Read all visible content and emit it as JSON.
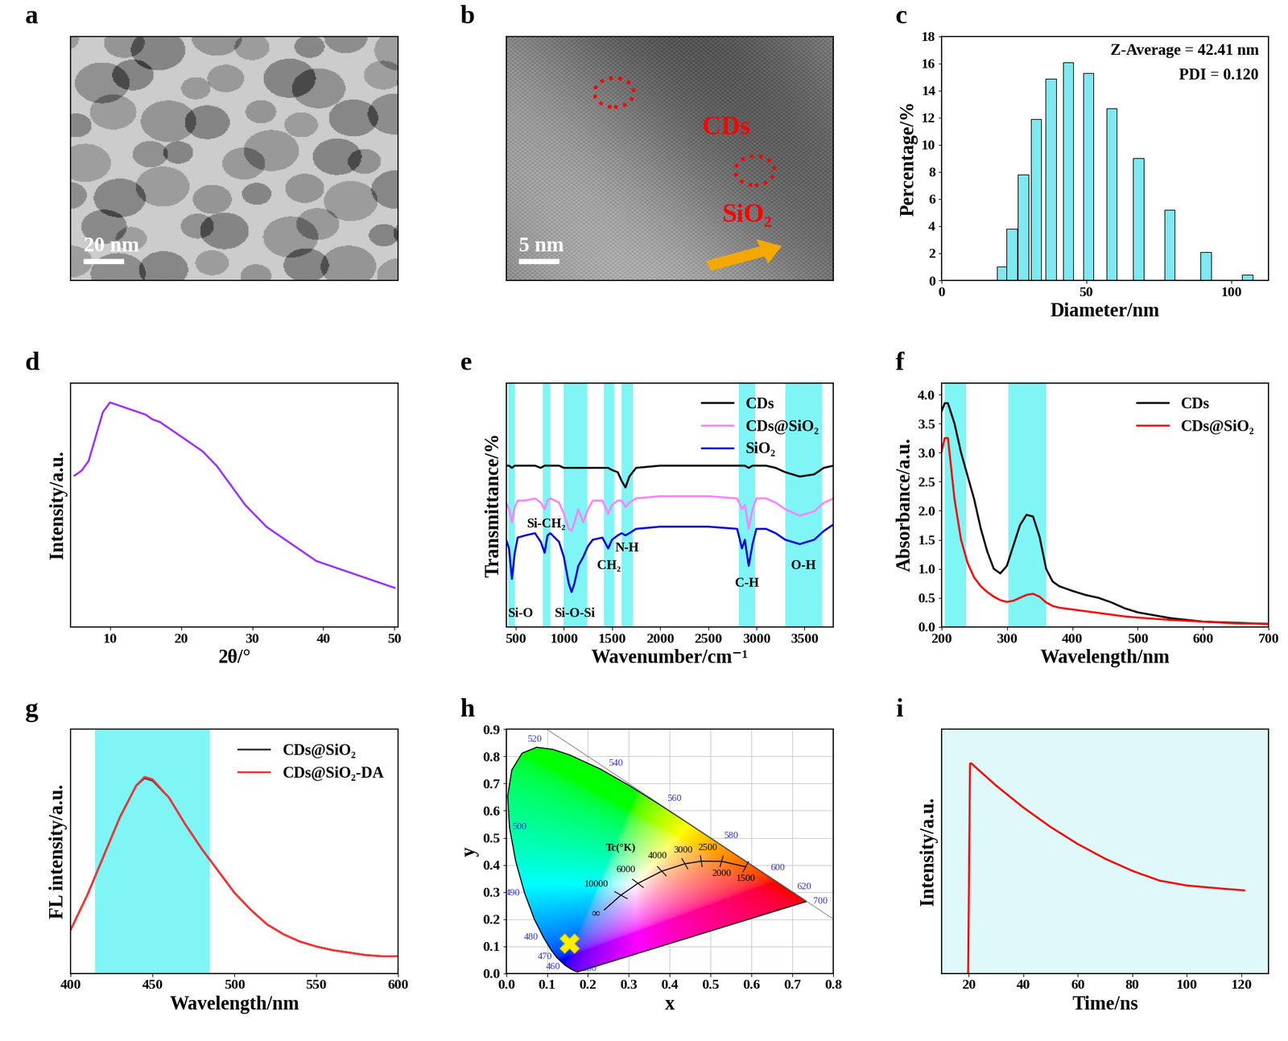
{
  "chart_data": [
    {
      "type": "image",
      "title": "a",
      "tick_labels": false,
      "annotations": [
        "20 nm"
      ]
    },
    {
      "type": "image",
      "title": "b",
      "tick_labels": false,
      "annotations": [
        "5 nm",
        "CDs",
        "SiO₂"
      ]
    },
    {
      "type": "bar",
      "title": "c",
      "xlabel": "Diameter/nm",
      "ylabel": "Percentage/%",
      "x": [
        21.04,
        24.36,
        28.21,
        32.67,
        37.84,
        43.82,
        50.75,
        58.77,
        68.06,
        78.82,
        91.28,
        105.7
      ],
      "values": [
        1.0,
        3.8,
        7.8,
        11.9,
        14.9,
        16.1,
        15.3,
        12.7,
        9.0,
        5.2,
        2.1,
        0.4
      ],
      "color": "#7fe8f0",
      "xlim": [
        0,
        113
      ],
      "xticks": [
        0,
        50,
        100
      ],
      "ylim": [
        0,
        18
      ],
      "yticks": [
        0,
        2,
        4,
        6,
        8,
        10,
        12,
        14,
        16,
        18
      ],
      "annotations": [
        "Z-Average = 42.41 nm",
        "PDI = 0.120"
      ]
    },
    {
      "type": "line",
      "title": "d",
      "xlabel": "2θ/°",
      "ylabel": "Intensity/a.u.",
      "x": [
        5,
        6,
        7,
        8,
        9,
        10,
        11,
        12,
        13,
        14,
        15,
        16,
        17,
        18,
        19,
        20,
        21,
        22,
        23,
        24,
        25,
        26,
        27,
        28,
        29,
        30,
        31,
        32,
        33,
        34,
        35,
        36,
        37,
        38,
        39,
        40,
        41,
        42,
        43,
        44,
        45,
        46,
        47,
        48,
        49,
        50
      ],
      "values": [
        62,
        64,
        68,
        78,
        88,
        92,
        91,
        90,
        89,
        88,
        87,
        85,
        84,
        82,
        80,
        78,
        76,
        74,
        72,
        69,
        66,
        62,
        58,
        54,
        50,
        47,
        44,
        41,
        39,
        37,
        35,
        33,
        31,
        29,
        27,
        26,
        25,
        24,
        23,
        22,
        21,
        20,
        19,
        18,
        17,
        16
      ],
      "color": "#9933ff",
      "xlim": [
        4.5,
        50.5
      ],
      "xticks": [
        10,
        20,
        30,
        40,
        50
      ],
      "ylim": [
        0,
        100
      ],
      "tick_labels": "x"
    },
    {
      "type": "line",
      "title": "e",
      "xlabel": "Wavenumber/cm⁻¹",
      "ylabel": "Transmittance/%",
      "x": [
        400,
        430,
        460,
        490,
        520,
        600,
        700,
        760,
        800,
        830,
        860,
        950,
        1000,
        1050,
        1080,
        1110,
        1150,
        1200,
        1250,
        1300,
        1400,
        1460,
        1500,
        1560,
        1600,
        1640,
        1680,
        1750,
        2000,
        2500,
        2800,
        2850,
        2880,
        2920,
        2960,
        3000,
        3100,
        3200,
        3300,
        3450,
        3600,
        3700,
        3800
      ],
      "series": [
        {
          "name": "CDs",
          "color": "#000000",
          "values": [
            62,
            62,
            61,
            62,
            62,
            62,
            62,
            61,
            62,
            62,
            62,
            62,
            61,
            61,
            61,
            61,
            61,
            61,
            61,
            61,
            61,
            61,
            60,
            59,
            55,
            52,
            57,
            61,
            62,
            62,
            62,
            62,
            62,
            61,
            62,
            62,
            62,
            61,
            59,
            57,
            58,
            61,
            62
          ]
        },
        {
          "name": "CDs@SiO₂",
          "color": "#ff80ff",
          "values": [
            45,
            42,
            36,
            43,
            46,
            46,
            47,
            45,
            42,
            46,
            47,
            45,
            40,
            33,
            32,
            36,
            42,
            36,
            42,
            46,
            46,
            40,
            44,
            46,
            46,
            43,
            45,
            47,
            48,
            48,
            47,
            42,
            44,
            33,
            42,
            47,
            47,
            45,
            42,
            39,
            41,
            45,
            47
          ]
        },
        {
          "name": "SiO₂",
          "color": "#0000dd",
          "values": [
            28,
            24,
            10,
            22,
            29,
            30,
            31,
            27,
            22,
            30,
            31,
            27,
            20,
            8,
            4,
            8,
            16,
            20,
            25,
            28,
            29,
            24,
            28,
            30,
            31,
            30,
            31,
            33,
            34,
            34,
            33,
            24,
            28,
            16,
            26,
            33,
            33,
            31,
            28,
            26,
            28,
            32,
            35
          ]
        }
      ],
      "bands": [
        [
          420,
          490
        ],
        [
          780,
          860
        ],
        [
          1000,
          1240
        ],
        [
          1420,
          1520
        ],
        [
          1600,
          1720
        ],
        [
          2820,
          2990
        ],
        [
          3300,
          3680
        ]
      ],
      "band_labels": [
        "Si-O",
        "Si-CH₂",
        "Si-O-Si",
        "CH₂",
        "N-H",
        "C-H",
        "O-H"
      ],
      "xlim": [
        400,
        3800
      ],
      "xticks": [
        500,
        1000,
        1500,
        2000,
        2500,
        3000,
        3500
      ],
      "ylim": [
        -12,
        100
      ],
      "tick_labels": "x",
      "legend": "upper right"
    },
    {
      "type": "line",
      "title": "f",
      "xlabel": "Wavelength/nm",
      "ylabel": "Absorbance/a.u.",
      "x": [
        200,
        205,
        210,
        220,
        230,
        240,
        250,
        260,
        270,
        280,
        290,
        300,
        310,
        320,
        330,
        340,
        350,
        360,
        370,
        380,
        400,
        420,
        440,
        460,
        480,
        500,
        550,
        600,
        650,
        700
      ],
      "series": [
        {
          "name": "CDs",
          "color": "#000000",
          "values": [
            3.7,
            3.85,
            3.85,
            3.5,
            3.0,
            2.6,
            2.2,
            1.7,
            1.3,
            1.0,
            0.92,
            1.05,
            1.4,
            1.75,
            1.93,
            1.9,
            1.55,
            1.0,
            0.78,
            0.7,
            0.62,
            0.55,
            0.5,
            0.42,
            0.32,
            0.25,
            0.15,
            0.09,
            0.07,
            0.05
          ]
        },
        {
          "name": "CDs@SiO₂",
          "color": "#ff0000",
          "values": [
            3.0,
            3.25,
            3.25,
            2.2,
            1.5,
            1.1,
            0.85,
            0.7,
            0.6,
            0.52,
            0.46,
            0.43,
            0.45,
            0.5,
            0.55,
            0.57,
            0.52,
            0.42,
            0.36,
            0.33,
            0.3,
            0.27,
            0.24,
            0.21,
            0.18,
            0.16,
            0.12,
            0.09,
            0.06,
            0.05
          ]
        }
      ],
      "bands": [
        [
          205,
          238
        ],
        [
          302,
          360
        ]
      ],
      "xlim": [
        200,
        700
      ],
      "xticks": [
        200,
        300,
        400,
        500,
        600,
        700
      ],
      "ylim": [
        0,
        4.2
      ],
      "yticks": [
        {
          "value": 0,
          "label": "0.0"
        },
        0.5,
        {
          "value": 1,
          "label": "1.0"
        },
        1.5,
        {
          "value": 2,
          "label": "2.0"
        },
        2.5,
        {
          "value": 3,
          "label": "3.0"
        },
        3.5,
        {
          "value": 4,
          "label": "4.0"
        }
      ],
      "legend": "upper right"
    },
    {
      "type": "line",
      "title": "g",
      "xlabel": "Wavelength/nm",
      "ylabel": "FL intensity/a.u.",
      "x": [
        400,
        410,
        420,
        430,
        440,
        445,
        450,
        460,
        470,
        480,
        490,
        500,
        510,
        520,
        530,
        540,
        550,
        560,
        570,
        580,
        590,
        600
      ],
      "series": [
        {
          "name": "CDs@SiO₂",
          "color": "#3c3c3c",
          "values": [
            18,
            32,
            48,
            64,
            77,
            80,
            79,
            72,
            61,
            51,
            42,
            33,
            26,
            20,
            16,
            13,
            11,
            9.5,
            8.5,
            7.5,
            7,
            7
          ]
        },
        {
          "name": "CDs@SiO₂-DA",
          "color": "#ff3333",
          "values": [
            18,
            32,
            48,
            64,
            77,
            80.5,
            79.5,
            72,
            61,
            51,
            42,
            33,
            26,
            20,
            16,
            13,
            11,
            9.5,
            8.5,
            7.5,
            7,
            7
          ]
        }
      ],
      "bands": [
        [
          415,
          485
        ]
      ],
      "xlim": [
        400,
        600
      ],
      "xticks": [
        400,
        450,
        500,
        550,
        600
      ],
      "ylim": [
        0,
        100
      ],
      "tick_labels": "x",
      "legend": "upper right"
    },
    {
      "type": "scatter",
      "title": "h",
      "xlabel": "x",
      "ylabel": "y",
      "x": [
        0.155
      ],
      "y": [
        0.11
      ],
      "color": "#ffee00",
      "marker": "X",
      "xlim": [
        0,
        0.8
      ],
      "ylim": [
        0,
        0.9
      ],
      "xticks": [
        {
          "value": 0,
          "label": "0.0"
        },
        0.1,
        0.2,
        0.3,
        0.4,
        0.5,
        0.6,
        0.7,
        0.8
      ],
      "yticks": [
        {
          "value": 0,
          "label": "0.0"
        },
        0.1,
        0.2,
        0.3,
        0.4,
        0.5,
        0.6,
        0.7,
        0.8,
        0.9
      ],
      "grid": true,
      "locus": {
        "wavelengths": [
          380,
          440,
          450,
          460,
          470,
          475,
          480,
          485,
          490,
          495,
          500,
          505,
          510,
          515,
          520,
          525,
          530,
          540,
          550,
          560,
          570,
          580,
          590,
          600,
          610,
          620,
          640,
          700
        ],
        "x": [
          0.1741,
          0.1644,
          0.1566,
          0.144,
          0.1241,
          0.1096,
          0.0913,
          0.0687,
          0.0454,
          0.0235,
          0.0082,
          0.0039,
          0.0139,
          0.0389,
          0.0743,
          0.1142,
          0.1547,
          0.2296,
          0.3016,
          0.3731,
          0.4441,
          0.5125,
          0.5752,
          0.627,
          0.6658,
          0.6915,
          0.719,
          0.7347
        ],
        "y": [
          0.005,
          0.0109,
          0.0177,
          0.0297,
          0.0578,
          0.0868,
          0.1327,
          0.2007,
          0.295,
          0.4127,
          0.5384,
          0.6548,
          0.7502,
          0.812,
          0.8338,
          0.8262,
          0.8059,
          0.7543,
          0.6923,
          0.6245,
          0.5547,
          0.4866,
          0.4242,
          0.3725,
          0.334,
          0.3083,
          0.2809,
          0.2653
        ],
        "labels": [
          380,
          460,
          470,
          480,
          490,
          500,
          520,
          540,
          560,
          580,
          600,
          620,
          700
        ]
      },
      "planck": {
        "temperatures": [
          1500,
          2000,
          2500,
          3000,
          4000,
          6000,
          10000
        ],
        "x": [
          0.5857,
          0.5267,
          0.477,
          0.4369,
          0.3805,
          0.3221,
          0.2807
        ],
        "y": [
          0.3931,
          0.4133,
          0.4137,
          0.4041,
          0.3768,
          0.3318,
          0.2884
        ],
        "infinity": {
          "x": 0.2399,
          "y": 0.2341,
          "label": "∞"
        }
      },
      "annotations": [
        "Tc(°K)"
      ]
    },
    {
      "type": "line",
      "title": "i",
      "xlabel": "Time/ns",
      "ylabel": "Intensity/a.u.",
      "x": [
        19.8,
        20.5,
        21,
        25,
        30,
        40,
        50,
        60,
        70,
        80,
        90,
        100,
        110,
        121
      ],
      "values": [
        0,
        86,
        86,
        82,
        77,
        68,
        60,
        53,
        47,
        42,
        38,
        36,
        35,
        34
      ],
      "color": "#ff0000",
      "xlim": [
        10,
        130
      ],
      "xticks": [
        20,
        40,
        60,
        80,
        100,
        120
      ],
      "ylim": [
        0,
        100
      ],
      "tick_labels": "x"
    }
  ]
}
